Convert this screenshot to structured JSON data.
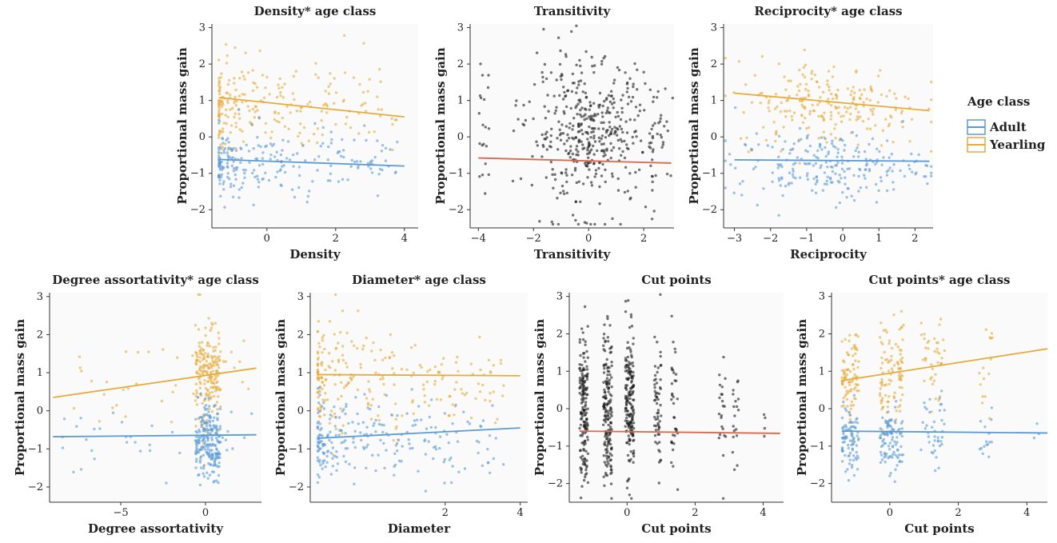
{
  "legend": {
    "title": "Age class",
    "items": [
      {
        "label": "Adult",
        "color": "#5b9bd5"
      },
      {
        "label": "Yearling",
        "color": "#e6ac3c"
      }
    ]
  },
  "chart_data": [
    {
      "type": "scatter",
      "title": "Density* age class",
      "xlabel": "Density",
      "ylabel": "Proportional mass gain",
      "xlim": [
        -1.6,
        4.4
      ],
      "ylim": [
        -2.5,
        3.1
      ],
      "xticks": [
        0,
        2,
        4
      ],
      "yticks": [
        -2,
        -1,
        0,
        1,
        2,
        3
      ],
      "grouped": true,
      "clouds": [
        {
          "series": "Yearling",
          "color": "#e6ac3c",
          "n": 230,
          "xmin": -1.4,
          "xmax": 3.8,
          "xskew": 2.4,
          "ymean": 0.85,
          "ysd": 0.65
        },
        {
          "series": "Adult",
          "color": "#5b9bd5",
          "n": 230,
          "xmin": -1.4,
          "xmax": 3.8,
          "xskew": 2.4,
          "ymean": -0.75,
          "ysd": 0.45
        }
      ],
      "lines": [
        {
          "series": "Yearling",
          "color": "#e6ac3c",
          "x": [
            -1.4,
            4.0
          ],
          "y": [
            1.08,
            0.55
          ]
        },
        {
          "series": "Adult",
          "color": "#5b9bd5",
          "x": [
            -1.4,
            4.0
          ],
          "y": [
            -0.62,
            -0.8
          ]
        }
      ]
    },
    {
      "type": "scatter",
      "title": "Transitivity",
      "xlabel": "Transitivity",
      "ylabel": "Proportional mass gain",
      "xlim": [
        -4.3,
        3.1
      ],
      "ylim": [
        -2.5,
        3.1
      ],
      "xticks": [
        -4,
        -2,
        0,
        2
      ],
      "yticks": [
        -2,
        -1,
        0,
        1,
        2,
        3
      ],
      "grouped": false,
      "clouds": [
        {
          "series": "all",
          "color": "#1a1a1a",
          "n": 440,
          "xmin": -2.2,
          "xmax": 2.2,
          "xskew": 1.0,
          "xnormal": true,
          "ymean": 0.1,
          "ysd": 1.0
        },
        {
          "series": "all",
          "color": "#1a1a1a",
          "n": 20,
          "xmin": -4.0,
          "xmax": -3.6,
          "xskew": 1.0,
          "ymean": 0.1,
          "ysd": 0.9
        },
        {
          "series": "all",
          "color": "#1a1a1a",
          "n": 30,
          "xmin": 2.2,
          "xmax": 2.8,
          "xskew": 1.0,
          "ymean": 0.1,
          "ysd": 0.9
        }
      ],
      "lines": [
        {
          "series": "all",
          "color": "#d9694a",
          "x": [
            -4.0,
            3.0
          ],
          "y": [
            -0.58,
            -0.72
          ]
        }
      ]
    },
    {
      "type": "scatter",
      "title": "Reciprocity* age class",
      "xlabel": "Reciprocity",
      "ylabel": "Proportional mass gain",
      "xlim": [
        -3.3,
        2.5
      ],
      "ylim": [
        -2.5,
        3.1
      ],
      "xticks": [
        -3,
        -2,
        -1,
        0,
        1,
        2
      ],
      "yticks": [
        -2,
        -1,
        0,
        1,
        2,
        3
      ],
      "grouped": true,
      "clouds": [
        {
          "series": "Yearling",
          "color": "#e6ac3c",
          "n": 230,
          "xmin": -3.0,
          "xmax": 2.2,
          "xskew": 1.0,
          "xnormal": true,
          "ymean": 0.9,
          "ysd": 0.6
        },
        {
          "series": "Adult",
          "color": "#5b9bd5",
          "n": 230,
          "xmin": -3.0,
          "xmax": 2.2,
          "xskew": 1.0,
          "xnormal": true,
          "ymean": -0.8,
          "ysd": 0.45
        }
      ],
      "lines": [
        {
          "series": "Yearling",
          "color": "#e6ac3c",
          "x": [
            -3.0,
            2.4
          ],
          "y": [
            1.2,
            0.72
          ]
        },
        {
          "series": "Adult",
          "color": "#5b9bd5",
          "x": [
            -3.0,
            2.4
          ],
          "y": [
            -0.63,
            -0.67
          ]
        }
      ]
    },
    {
      "type": "scatter",
      "title": "Degree assortativity* age class",
      "xlabel": "Degree assortativity",
      "ylabel": "Proportional mass gain",
      "xlim": [
        -9.2,
        3.3
      ],
      "ylim": [
        -2.4,
        3.1
      ],
      "xticks": [
        -5,
        0
      ],
      "yticks": [
        -2,
        -1,
        0,
        1,
        2,
        3
      ],
      "grouped": true,
      "clouds": [
        {
          "series": "Yearling",
          "color": "#e6ac3c",
          "n": 200,
          "xmin": -0.6,
          "xmax": 0.9,
          "xskew": 1.0,
          "ymean": 0.95,
          "ysd": 0.7
        },
        {
          "series": "Adult",
          "color": "#5b9bd5",
          "n": 220,
          "xmin": -0.6,
          "xmax": 0.9,
          "xskew": 1.0,
          "ymean": -0.85,
          "ysd": 0.5
        },
        {
          "series": "Yearling",
          "color": "#e6ac3c",
          "n": 25,
          "xmin": -8.5,
          "xmax": -0.6,
          "xskew": 1.0,
          "ymean": 0.8,
          "ysd": 0.6
        },
        {
          "series": "Adult",
          "color": "#5b9bd5",
          "n": 25,
          "xmin": -8.5,
          "xmax": -0.6,
          "xskew": 1.0,
          "ymean": -0.8,
          "ysd": 0.55
        },
        {
          "series": "Yearling",
          "color": "#e6ac3c",
          "n": 8,
          "xmin": 0.9,
          "xmax": 2.8,
          "xskew": 1.0,
          "ymean": 1.3,
          "ysd": 0.3
        },
        {
          "series": "Adult",
          "color": "#5b9bd5",
          "n": 8,
          "xmin": 0.9,
          "xmax": 2.8,
          "xskew": 1.0,
          "ymean": -0.6,
          "ysd": 0.4
        }
      ],
      "lines": [
        {
          "series": "Yearling",
          "color": "#e6ac3c",
          "x": [
            -9.0,
            3.0
          ],
          "y": [
            0.35,
            1.12
          ]
        },
        {
          "series": "Adult",
          "color": "#5b9bd5",
          "x": [
            -9.0,
            3.0
          ],
          "y": [
            -0.68,
            -0.63
          ]
        }
      ]
    },
    {
      "type": "scatter",
      "title": "Diameter* age class",
      "xlabel": "Diameter",
      "ylabel": "Proportional mass gain",
      "xlim": [
        -1.6,
        4.2
      ],
      "ylim": [
        -2.4,
        3.1
      ],
      "xticks": [
        2,
        4
      ],
      "yticks": [
        -2,
        -1,
        0,
        1,
        2,
        3
      ],
      "grouped": true,
      "clouds": [
        {
          "series": "Yearling",
          "color": "#e6ac3c",
          "n": 230,
          "xmin": -1.4,
          "xmax": 3.6,
          "xskew": 2.2,
          "ymean": 0.9,
          "ysd": 0.7
        },
        {
          "series": "Adult",
          "color": "#5b9bd5",
          "n": 230,
          "xmin": -1.4,
          "xmax": 3.6,
          "xskew": 2.2,
          "ymean": -0.75,
          "ysd": 0.5
        }
      ],
      "lines": [
        {
          "series": "Yearling",
          "color": "#e6ac3c",
          "x": [
            -1.4,
            4.0
          ],
          "y": [
            0.95,
            0.92
          ]
        },
        {
          "series": "Adult",
          "color": "#5b9bd5",
          "x": [
            -1.4,
            4.0
          ],
          "y": [
            -0.72,
            -0.45
          ]
        }
      ]
    },
    {
      "type": "scatter",
      "title": "Cut points",
      "xlabel": "Cut points",
      "ylabel": "Proportional mass gain",
      "xlim": [
        -1.7,
        4.6
      ],
      "ylim": [
        -2.5,
        3.1
      ],
      "xticks": [
        0,
        2,
        4
      ],
      "yticks": [
        -2,
        -1,
        0,
        1,
        2,
        3
      ],
      "grouped": false,
      "columns": [
        -1.3,
        -0.6,
        0.05,
        0.85,
        1.4,
        2.8,
        3.2,
        4.0
      ],
      "clouds": [
        {
          "series": "all",
          "color": "#1a1a1a",
          "n": 170,
          "xmin": -1.4,
          "xmax": -1.15,
          "xskew": 1.0,
          "ymean": 0.0,
          "ysd": 0.95
        },
        {
          "series": "all",
          "color": "#1a1a1a",
          "n": 170,
          "xmin": -0.7,
          "xmax": -0.45,
          "xskew": 1.0,
          "ymean": 0.0,
          "ysd": 0.95
        },
        {
          "series": "all",
          "color": "#1a1a1a",
          "n": 180,
          "xmin": -0.05,
          "xmax": 0.2,
          "xskew": 1.0,
          "ymean": 0.1,
          "ysd": 1.0
        },
        {
          "series": "all",
          "color": "#1a1a1a",
          "n": 60,
          "xmin": 0.8,
          "xmax": 1.0,
          "xskew": 1.0,
          "ymean": 0.0,
          "ysd": 0.9
        },
        {
          "series": "all",
          "color": "#1a1a1a",
          "n": 35,
          "xmin": 1.3,
          "xmax": 1.5,
          "xskew": 1.0,
          "ymean": 0.0,
          "ysd": 1.0
        },
        {
          "series": "all",
          "color": "#1a1a1a",
          "n": 22,
          "xmin": 2.7,
          "xmax": 2.9,
          "xskew": 1.0,
          "ymean": -0.2,
          "ysd": 0.8
        },
        {
          "series": "all",
          "color": "#1a1a1a",
          "n": 18,
          "xmin": 3.1,
          "xmax": 3.3,
          "xskew": 1.0,
          "ymean": -0.1,
          "ysd": 0.8
        },
        {
          "series": "all",
          "color": "#1a1a1a",
          "n": 4,
          "xmin": 4.0,
          "xmax": 4.1,
          "xskew": 1.0,
          "ymean": -0.5,
          "ysd": 0.3
        }
      ],
      "lines": [
        {
          "series": "all",
          "color": "#d9694a",
          "x": [
            -1.4,
            4.5
          ],
          "y": [
            -0.6,
            -0.66
          ]
        }
      ]
    },
    {
      "type": "scatter",
      "title": "Cut points* age class",
      "xlabel": "Cut points",
      "ylabel": "Proportional mass gain",
      "xlim": [
        -1.7,
        4.6
      ],
      "ylim": [
        -2.5,
        3.1
      ],
      "xticks": [
        0,
        2,
        4
      ],
      "yticks": [
        -2,
        -1,
        0,
        1,
        2,
        3
      ],
      "grouped": true,
      "clouds": [
        {
          "series": "Yearling",
          "color": "#e6ac3c",
          "n": 90,
          "xmin": -1.4,
          "xmax": -0.9,
          "xskew": 1.0,
          "ymean": 0.8,
          "ysd": 0.6
        },
        {
          "series": "Yearling",
          "color": "#e6ac3c",
          "n": 100,
          "xmin": -0.3,
          "xmax": 0.4,
          "xskew": 1.0,
          "ymean": 0.9,
          "ysd": 0.7
        },
        {
          "series": "Yearling",
          "color": "#e6ac3c",
          "n": 40,
          "xmin": 0.9,
          "xmax": 1.6,
          "xskew": 1.0,
          "ymean": 1.2,
          "ysd": 0.6
        },
        {
          "series": "Yearling",
          "color": "#e6ac3c",
          "n": 15,
          "xmin": 2.6,
          "xmax": 3.0,
          "xskew": 1.0,
          "ymean": 1.1,
          "ysd": 0.6
        },
        {
          "series": "Adult",
          "color": "#5b9bd5",
          "n": 90,
          "xmin": -1.4,
          "xmax": -0.9,
          "xskew": 1.0,
          "ymean": -0.8,
          "ysd": 0.45
        },
        {
          "series": "Adult",
          "color": "#5b9bd5",
          "n": 100,
          "xmin": -0.3,
          "xmax": 0.4,
          "xskew": 1.0,
          "ymean": -0.8,
          "ysd": 0.45
        },
        {
          "series": "Adult",
          "color": "#5b9bd5",
          "n": 40,
          "xmin": 0.9,
          "xmax": 1.6,
          "xskew": 1.0,
          "ymean": -0.6,
          "ysd": 0.45
        },
        {
          "series": "Adult",
          "color": "#5b9bd5",
          "n": 15,
          "xmin": 2.6,
          "xmax": 3.0,
          "xskew": 1.0,
          "ymean": -0.7,
          "ysd": 0.5
        },
        {
          "series": "Adult",
          "color": "#5b9bd5",
          "n": 3,
          "xmin": 4.2,
          "xmax": 4.4,
          "xskew": 1.0,
          "ymean": -0.4,
          "ysd": 0.2
        }
      ],
      "lines": [
        {
          "series": "Yearling",
          "color": "#e6ac3c",
          "x": [
            -1.4,
            4.6
          ],
          "y": [
            0.75,
            1.6
          ]
        },
        {
          "series": "Adult",
          "color": "#5b9bd5",
          "x": [
            -1.4,
            4.6
          ],
          "y": [
            -0.6,
            -0.65
          ]
        }
      ]
    }
  ]
}
